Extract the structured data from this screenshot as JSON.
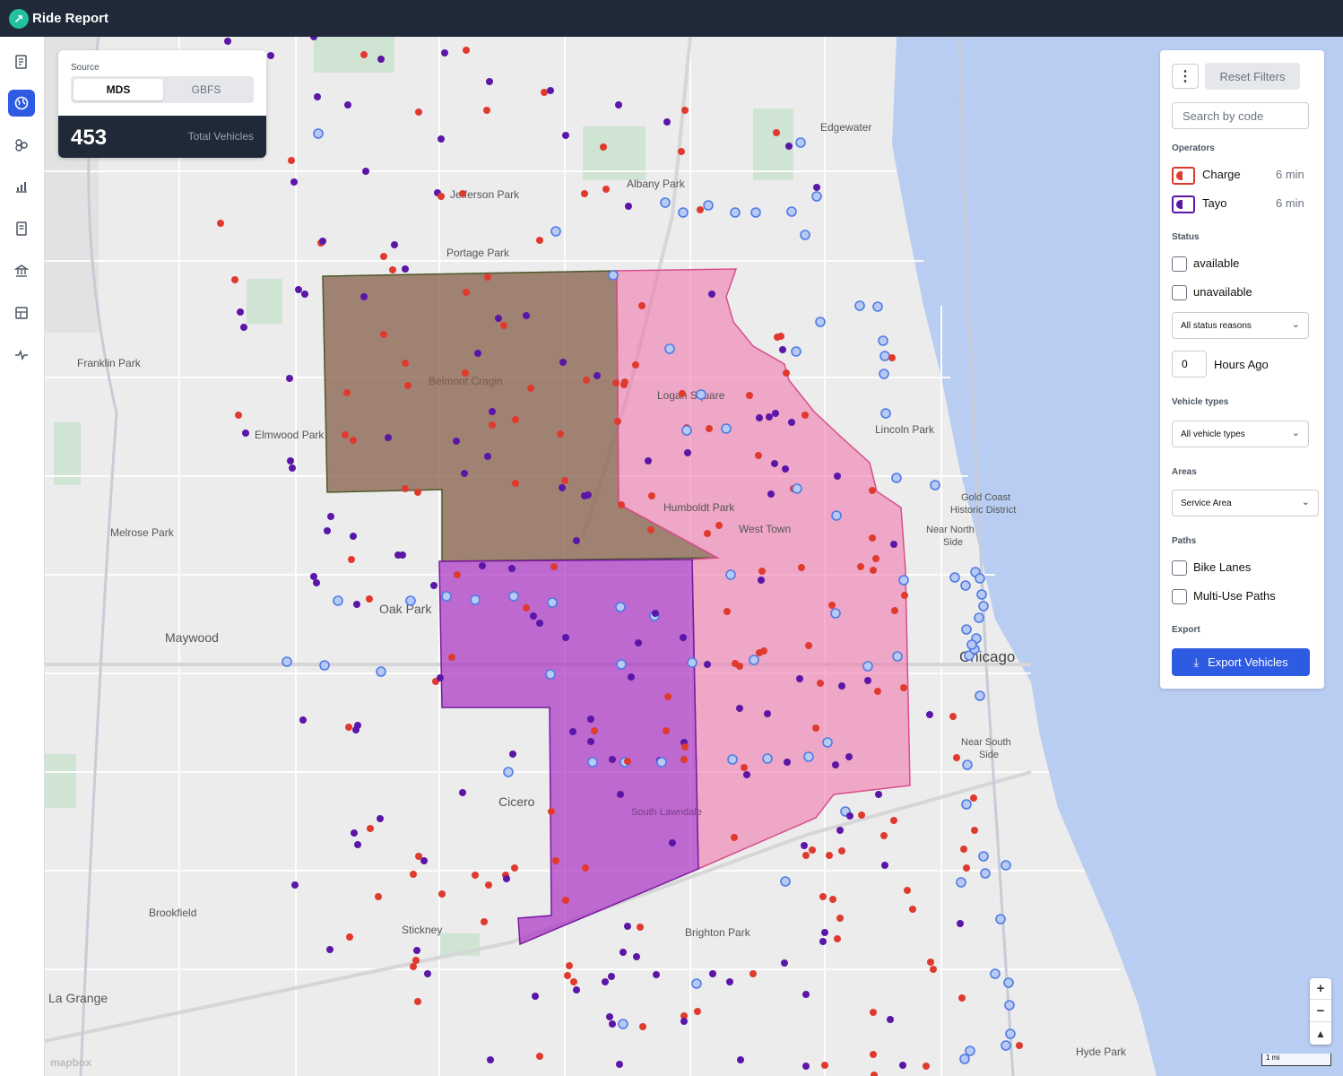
{
  "app": {
    "name": "Ride Report"
  },
  "sidebar": {
    "icons": [
      "reports-icon",
      "map-globe-icon",
      "layers-icon",
      "analytics-icon",
      "document-icon",
      "policy-building-icon",
      "dashboard-icon",
      "health-icon"
    ]
  },
  "source": {
    "label": "Source",
    "options": [
      "MDS",
      "GBFS"
    ],
    "selected": "MDS",
    "total": "453",
    "total_label": "Total Vehicles"
  },
  "filters": {
    "reset": "Reset Filters",
    "search_placeholder": "Search by code",
    "operators_heading": "Operators",
    "operators": [
      {
        "name": "Charge",
        "time": "6 min",
        "color": "#e03a2f"
      },
      {
        "name": "Tayo",
        "time": "6 min",
        "color": "#5b16a8"
      }
    ],
    "status_heading": "Status",
    "status_options": [
      "available",
      "unavailable"
    ],
    "status_reason": "All status reasons",
    "hours_value": "0",
    "hours_label": "Hours Ago",
    "vehicle_types_heading": "Vehicle types",
    "vehicle_type": "All vehicle types",
    "areas_heading": "Areas",
    "area": "Service Area",
    "paths_heading": "Paths",
    "paths": [
      "Bike Lanes",
      "Multi-Use Paths"
    ],
    "export_heading": "Export",
    "export_button": "Export Vehicles"
  },
  "map": {
    "places": [
      "Edgewater",
      "Albany Park",
      "Jefferson Park",
      "Portage Park",
      "Franklin Park",
      "Belmont Cragin",
      "Logan Square",
      "Elmwood Park",
      "Lincoln Park",
      "Gold Coast",
      "Historic District",
      "Near North",
      "Side",
      "Humboldt Park",
      "West Town",
      "Melrose Park",
      "Oak Park",
      "Maywood",
      "Chicago",
      "Near South",
      "Side",
      "Cicero",
      "South Lawndale",
      "Brookfield",
      "Stickney",
      "Brighton Park",
      "La Grange",
      "Hyde Park"
    ],
    "attribution": "mapbox",
    "scale": "1 mi",
    "colors": {
      "water": "#b9cdf2",
      "red_dot": "#e03a2f",
      "purple_dot": "#5b16a8",
      "blue_ring": "#4d7be6"
    }
  }
}
